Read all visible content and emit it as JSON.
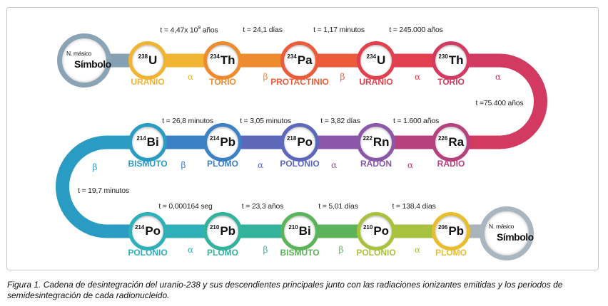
{
  "legend_start": {
    "mass_label": "N. másico",
    "symbol_label": "Símbolo"
  },
  "legend_end": {
    "mass_label": "N. másico",
    "symbol_label": "Símbolo"
  },
  "nuclides": [
    {
      "mass": "238",
      "symbol": "U",
      "name": "URANIO",
      "color": "#f0b430"
    },
    {
      "mass": "234",
      "symbol": "Th",
      "name": "TORIO",
      "color": "#ef8b2f"
    },
    {
      "mass": "234",
      "symbol": "Pa",
      "name": "PROTACTINIO",
      "color": "#ea5c3a"
    },
    {
      "mass": "234",
      "symbol": "U",
      "name": "URANIO",
      "color": "#e2404e"
    },
    {
      "mass": "230",
      "symbol": "Th",
      "name": "TORIO",
      "color": "#d33a62"
    },
    {
      "mass": "226",
      "symbol": "Ra",
      "name": "RADIO",
      "color": "#b6417f"
    },
    {
      "mass": "222",
      "symbol": "Rn",
      "name": "RADÓN",
      "color": "#8b57a8"
    },
    {
      "mass": "218",
      "symbol": "Po",
      "name": "POLONIO",
      "color": "#5d68bb"
    },
    {
      "mass": "214",
      "symbol": "Pb",
      "name": "PLOMO",
      "color": "#3c80c6"
    },
    {
      "mass": "214",
      "symbol": "Bi",
      "name": "BISMUTO",
      "color": "#2a9cc4"
    },
    {
      "mass": "214",
      "symbol": "Po",
      "name": "POLONIO",
      "color": "#2eb0b8"
    },
    {
      "mass": "210",
      "symbol": "Pb",
      "name": "PLOMO",
      "color": "#33b29c"
    },
    {
      "mass": "210",
      "symbol": "Bi",
      "name": "BISMUTO",
      "color": "#5bb35a"
    },
    {
      "mass": "210",
      "symbol": "Po",
      "name": "POLONIO",
      "color": "#a8c23e"
    },
    {
      "mass": "206",
      "symbol": "Pb",
      "name": "PLOMO",
      "color": "#e8bd2e"
    }
  ],
  "half_lives": [
    {
      "text": "t = 4,47x 10",
      "sup": "9",
      "suffix": " años"
    },
    {
      "text": "t = 24,1 días"
    },
    {
      "text": "t = 1,17 minutos"
    },
    {
      "text": "t = 245.000 años"
    },
    {
      "text": "t =75.400 años"
    },
    {
      "text": "t = 1.600 años"
    },
    {
      "text": "t = 3,82 días"
    },
    {
      "text": "t = 3,05 minutos"
    },
    {
      "text": "t = 26,8 minutos"
    },
    {
      "text": "t = 19,7 minutos"
    },
    {
      "text": "t = 0,000164 seg"
    },
    {
      "text": "t = 23,3 años"
    },
    {
      "text": "t = 5,01 días"
    },
    {
      "text": "t = 138,4 días"
    }
  ],
  "radiations": [
    "α",
    "β",
    "β",
    "α",
    "α",
    "α",
    "α",
    "α",
    "β",
    "β",
    "α",
    "β",
    "β",
    "α"
  ],
  "caption": "Figura 1. Cadena de desintegración del uranio-238 y sus descendientes principales junto con las radiaciones ionizantes emitidas y los periodos de semidesintegración de cada radionucleido."
}
